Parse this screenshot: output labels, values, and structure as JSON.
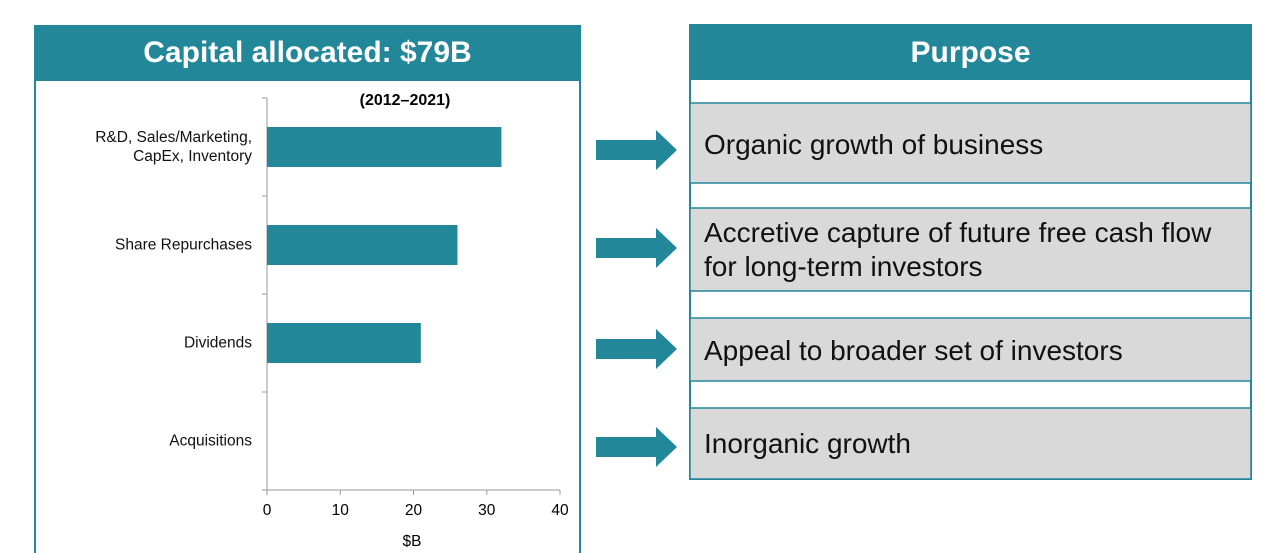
{
  "chart_data": {
    "type": "bar",
    "orientation": "horizontal",
    "title": "Capital allocated: $79B",
    "subtitle": "(2012–2021)",
    "categories": [
      "R&D, Sales/Marketing, CapEx, Inventory",
      "Share Repurchases",
      "Dividends",
      "Acquisitions"
    ],
    "values": [
      32,
      26,
      21,
      0
    ],
    "color": "#23879a",
    "xlim": [
      0,
      40
    ],
    "xticks": [
      0,
      10,
      20,
      30,
      40
    ],
    "xlabel": "$B"
  },
  "purpose": {
    "title": "Purpose",
    "items": [
      "Organic growth of business",
      "Accretive capture of future free cash flow for long-term investors",
      "Appeal to broader set of investors",
      "Inorganic growth"
    ]
  }
}
